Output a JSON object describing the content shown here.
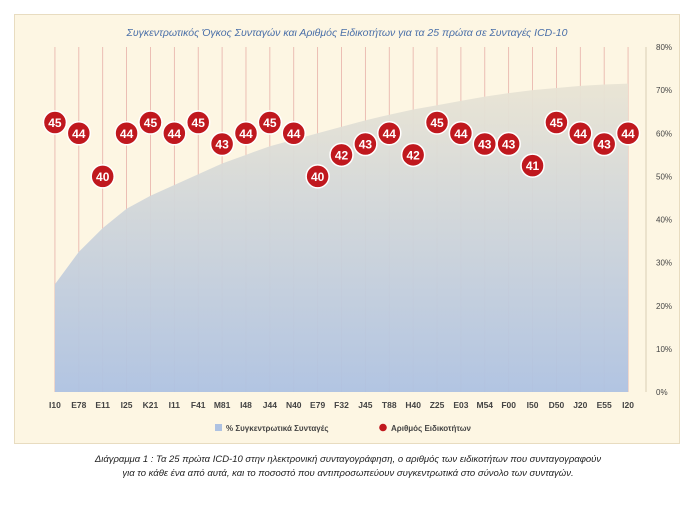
{
  "chart_data": {
    "type": "combo",
    "title": "Συγκεντρωτικός Όγκος Συνταγών και Αριθμός Ειδικοτήτων για τα 25 πρώτα σε Συνταγές ICD-10",
    "categories": [
      "I10",
      "E78",
      "E11",
      "I25",
      "K21",
      "I11",
      "F41",
      "M81",
      "I48",
      "J44",
      "N40",
      "E79",
      "F32",
      "J45",
      "T88",
      "H40",
      "Z25",
      "E03",
      "M54",
      "F00",
      "I50",
      "D50",
      "J20",
      "E55",
      "I20"
    ],
    "series": [
      {
        "name": "% Συγκεντρωτικά Συνταγές",
        "type": "area",
        "axis": "right",
        "values": [
          25,
          32.5,
          38,
          42.5,
          45.5,
          48,
          50.5,
          53,
          55,
          57,
          58.5,
          60,
          61.5,
          63,
          64.3,
          65.5,
          66.5,
          67.5,
          68.5,
          69.3,
          70,
          70.5,
          71,
          71.3,
          71.5
        ]
      },
      {
        "name": "Αριθμός Ειδικοτήτων",
        "type": "scatter",
        "axis": "left",
        "values": [
          45,
          44,
          40,
          44,
          45,
          44,
          45,
          43,
          44,
          45,
          44,
          40,
          42,
          43,
          44,
          42,
          45,
          44,
          43,
          43,
          41,
          45,
          44,
          43,
          44
        ]
      }
    ],
    "y2lim": [
      0,
      80
    ],
    "y2ticks": [
      "0%",
      "10%",
      "20%",
      "30%",
      "40%",
      "50%",
      "60%",
      "70%",
      "80%"
    ],
    "y1lim": [
      20,
      52
    ],
    "grid": "vertical",
    "legend_position": "bottom",
    "colors": {
      "area_top": "#e9e4d4",
      "area_bottom": "#aec2e2",
      "marker_fill": "#c0181e",
      "marker_stroke": "#ffffff",
      "grid": "#e7b0a8",
      "label": "#444444"
    }
  },
  "caption": {
    "line1": "Διάγραμμα 1 : Τα 25 πρώτα ICD-10 στην ηλεκτρονική συνταγογράφηση, ο αριθμός των ειδικοτήτων που συνταγογραφούν",
    "line2": "για το κάθε ένα από αυτά, και το ποσοστό που αντιπροσωπεύουν συγκεντρωτικά στο σύνολο των συνταγών."
  }
}
